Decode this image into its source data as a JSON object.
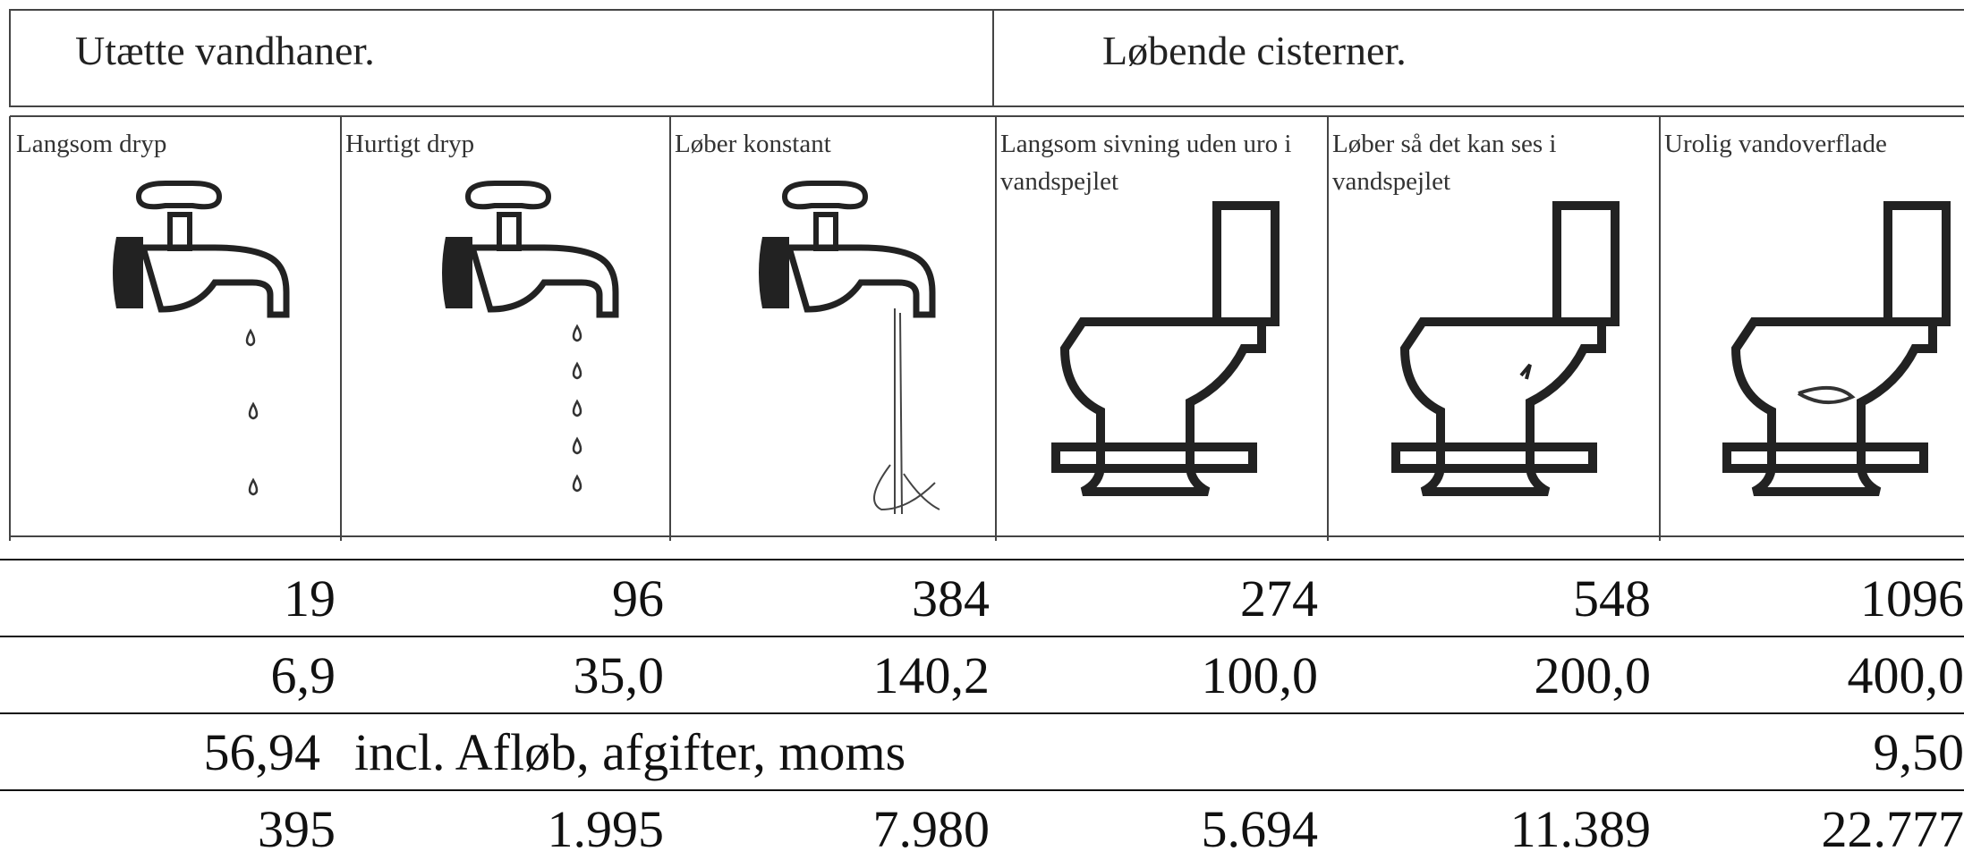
{
  "header": {
    "groups": [
      "Utætte vandhaner.",
      "Løbende cisterner."
    ],
    "columns": [
      "Langsom dryp",
      "Hurtigt dryp",
      "Løber konstant",
      "Langsom sivning uden uro i vandspejlet",
      "Løber så det kan ses i vandspejlet",
      "Urolig vandoverflade"
    ]
  },
  "table": {
    "rows": [
      [
        "19",
        "96",
        "384",
        "274",
        "548",
        "1096"
      ],
      [
        "6,9",
        "35,0",
        "140,2",
        "100,0",
        "200,0",
        "400,0"
      ],
      [
        "56,94",
        "incl. Afløb, afgifter, moms",
        "9,50"
      ],
      [
        "395",
        "1.995",
        "7.980",
        "5.694",
        "11.389",
        "22.777"
      ]
    ]
  }
}
